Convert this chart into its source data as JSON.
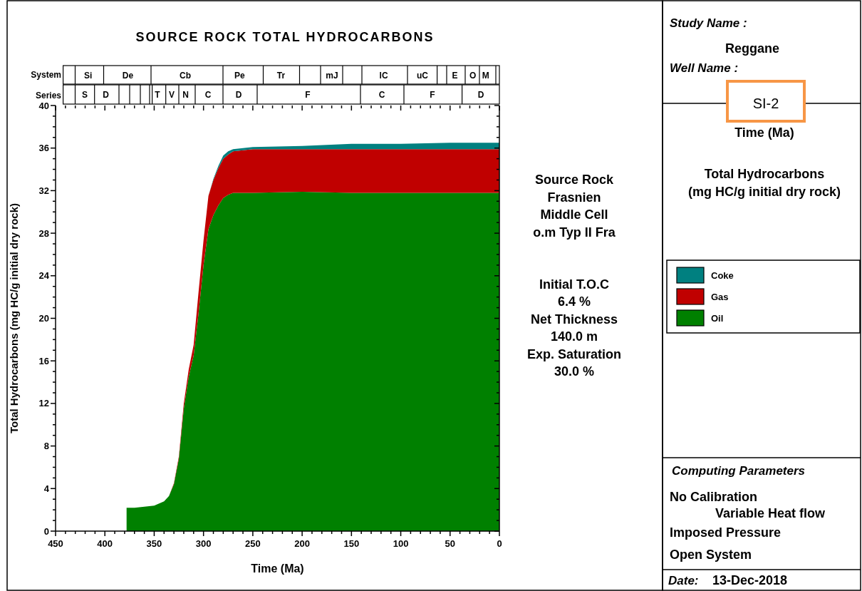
{
  "chart_data": {
    "type": "area",
    "stacked": true,
    "title": "SOURCE ROCK TOTAL HYDROCARBONS",
    "xlabel": "Time (Ma)",
    "ylabel": "Total Hydrocarbons (mg HC/g initial dry rock)",
    "x": [
      378,
      370,
      360,
      350,
      340,
      335,
      330,
      325,
      320,
      315,
      310,
      305,
      300,
      295,
      290,
      285,
      280,
      275,
      270,
      260,
      250,
      200,
      150,
      100,
      50,
      0
    ],
    "series": [
      {
        "name": "Oil",
        "color": "#008000",
        "values": [
          2.2,
          2.2,
          2.3,
          2.4,
          2.8,
          3.3,
          4.4,
          6.8,
          11.5,
          14.5,
          16.5,
          20.5,
          25,
          28.4,
          29.7,
          30.6,
          31.3,
          31.6,
          31.8,
          31.8,
          31.8,
          31.9,
          31.8,
          31.8,
          31.8,
          31.8
        ]
      },
      {
        "name": "Gas",
        "color": "#c00000",
        "values": [
          0,
          0,
          0,
          0,
          0,
          0,
          0.1,
          0.2,
          0.5,
          0.7,
          1.0,
          2.0,
          2.3,
          3.1,
          3.3,
          3.5,
          3.7,
          3.8,
          3.9,
          4.0,
          4.1,
          4.0,
          4.1,
          4.1,
          4.1,
          4.1
        ]
      },
      {
        "name": "Coke",
        "color": "#008080",
        "values": [
          0,
          0,
          0,
          0,
          0,
          0,
          0,
          0,
          0,
          0,
          0,
          0,
          0,
          0,
          0.1,
          0.2,
          0.3,
          0.3,
          0.2,
          0.2,
          0.2,
          0.3,
          0.5,
          0.5,
          0.6,
          0.6
        ]
      }
    ],
    "xlim": [
      450,
      0
    ],
    "xticks": [
      450,
      {
        "value": 440,
        "label": null
      },
      {
        "value": 430,
        "label": null
      },
      {
        "value": 420,
        "label": null
      },
      {
        "value": 410,
        "label": null
      },
      400,
      {
        "value": 390,
        "label": null
      },
      {
        "value": 380,
        "label": null
      },
      {
        "value": 370,
        "label": null
      },
      {
        "value": 360,
        "label": null
      },
      350,
      {
        "value": 340,
        "label": null
      },
      {
        "value": 330,
        "label": null
      },
      {
        "value": 320,
        "label": null
      },
      {
        "value": 310,
        "label": null
      },
      300,
      {
        "value": 290,
        "label": null
      },
      {
        "value": 280,
        "label": null
      },
      {
        "value": 270,
        "label": null
      },
      {
        "value": 260,
        "label": null
      },
      250,
      {
        "value": 240,
        "label": null
      },
      {
        "value": 230,
        "label": null
      },
      {
        "value": 220,
        "label": null
      },
      {
        "value": 210,
        "label": null
      },
      200,
      {
        "value": 190,
        "label": null
      },
      {
        "value": 180,
        "label": null
      },
      {
        "value": 170,
        "label": null
      },
      {
        "value": 160,
        "label": null
      },
      150,
      {
        "value": 140,
        "label": null
      },
      {
        "value": 130,
        "label": null
      },
      {
        "value": 120,
        "label": null
      },
      {
        "value": 110,
        "label": null
      },
      100,
      {
        "value": 90,
        "label": null
      },
      {
        "value": 80,
        "label": null
      },
      {
        "value": 70,
        "label": null
      },
      {
        "value": 60,
        "label": null
      },
      50,
      {
        "value": 40,
        "label": null
      },
      {
        "value": 30,
        "label": null
      },
      {
        "value": 20,
        "label": null
      },
      {
        "value": 10,
        "label": null
      },
      0
    ],
    "ylim": [
      0,
      40
    ],
    "yticks": [
      0,
      {
        "value": 1,
        "label": null
      },
      {
        "value": 2,
        "label": null
      },
      {
        "value": 3,
        "label": null
      },
      4,
      {
        "value": 5,
        "label": null
      },
      {
        "value": 6,
        "label": null
      },
      {
        "value": 7,
        "label": null
      },
      8,
      {
        "value": 9,
        "label": null
      },
      {
        "value": 10,
        "label": null
      },
      {
        "value": 11,
        "label": null
      },
      12,
      {
        "value": 13,
        "label": null
      },
      {
        "value": 14,
        "label": null
      },
      {
        "value": 15,
        "label": null
      },
      16,
      {
        "value": 17,
        "label": null
      },
      {
        "value": 18,
        "label": null
      },
      {
        "value": 19,
        "label": null
      },
      20,
      {
        "value": 21,
        "label": null
      },
      {
        "value": 22,
        "label": null
      },
      {
        "value": 23,
        "label": null
      },
      24,
      {
        "value": 25,
        "label": null
      },
      {
        "value": 26,
        "label": null
      },
      {
        "value": 27,
        "label": null
      },
      28,
      {
        "value": 29,
        "label": null
      },
      {
        "value": 30,
        "label": null
      },
      {
        "value": 31,
        "label": null
      },
      32,
      {
        "value": 33,
        "label": null
      },
      {
        "value": 34,
        "label": null
      },
      {
        "value": 35,
        "label": null
      },
      36,
      {
        "value": 37,
        "label": null
      },
      {
        "value": 38,
        "label": null
      },
      {
        "value": 39,
        "label": null
      },
      40
    ],
    "grid": false,
    "legend": "right",
    "annotations": [
      "Si",
      "De",
      "Cb",
      "Pe",
      "Tr",
      "mJ",
      "lC",
      "uC",
      "E",
      "O",
      "M",
      "S",
      "D",
      "T",
      "V",
      "N",
      "C",
      "D",
      "F",
      "C",
      "F",
      "D",
      "System",
      "Series",
      "Source Rock",
      "Frasnien",
      "Middle Cell",
      "o.m Typ II Fra",
      "Initial T.O.C",
      "6.4 %",
      "Net Thickness",
      "140.0 m",
      "Exp. Saturation",
      "30.0 %",
      "Study Name :",
      "Reggane",
      "Well Name :",
      "SI-2",
      "Time (Ma)",
      "Total Hydrocarbons",
      "(mg HC/g initial dry rock)",
      "Computing Parameters",
      "No Calibration",
      "Variable Heat flow",
      "Imposed Pressure",
      "Open System",
      "Date:",
      "13-Dec-2018"
    ]
  }
}
